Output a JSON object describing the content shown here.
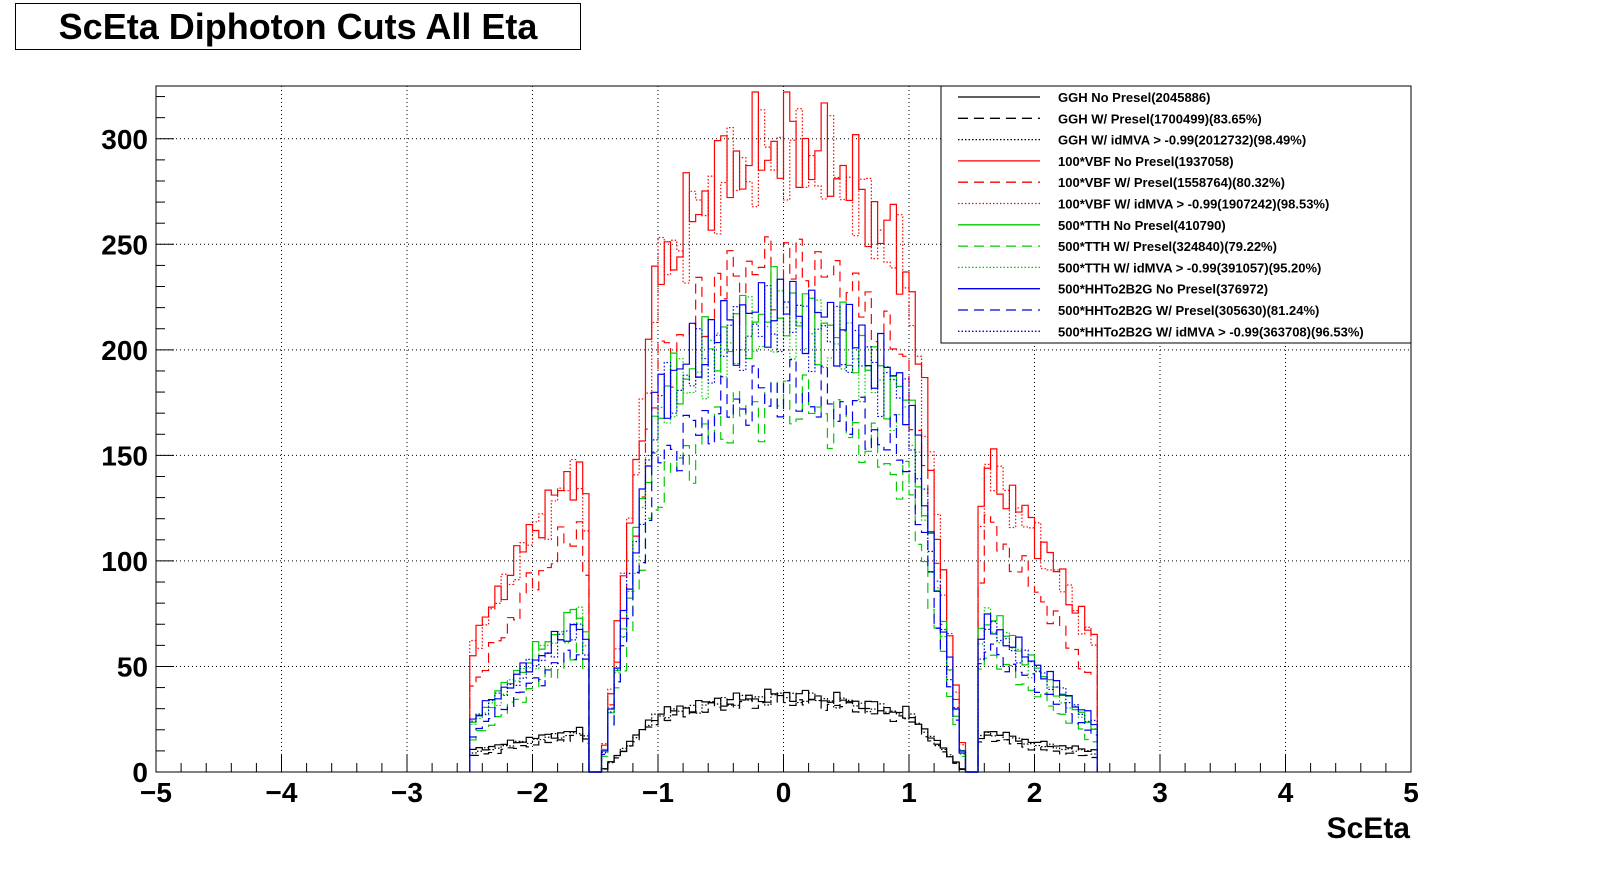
{
  "chart_data": {
    "type": "line",
    "title": "ScEta Diphoton Cuts All Eta",
    "xlabel": "ScEta",
    "ylabel": "",
    "xlim": [
      -5,
      5
    ],
    "ylim": [
      0,
      325
    ],
    "xticks": [
      -5,
      -4,
      -3,
      -2,
      -1,
      0,
      1,
      2,
      3,
      4,
      5
    ],
    "xtick_labels": [
      "−5",
      "−4",
      "−3",
      "−2",
      "−1",
      "0",
      "1",
      "2",
      "3",
      "4",
      "5"
    ],
    "yticks": [
      0,
      50,
      100,
      150,
      200,
      250,
      300
    ],
    "ytick_labels": [
      "0",
      "50",
      "100",
      "150",
      "200",
      "250",
      "300"
    ],
    "grid": true,
    "legend_placement": "top-right",
    "x_centers": [
      -2.5,
      -2.0,
      -1.6,
      -1.45,
      -1.0,
      -0.5,
      0.0,
      0.5,
      1.0,
      1.45,
      1.6,
      2.0,
      2.5
    ],
    "series": [
      {
        "name": "GGH No Presel(2045886)",
        "color": "#000000",
        "dash": "solid",
        "values": [
          10,
          16,
          20,
          0,
          28,
          34,
          37,
          34,
          28,
          0,
          20,
          14,
          10
        ]
      },
      {
        "name": "GGH W/ Presel(1700499)(83.65%)",
        "color": "#000000",
        "dash": "dashed",
        "values": [
          7,
          13,
          17,
          0,
          25,
          31,
          34,
          31,
          25,
          0,
          17,
          11,
          7
        ]
      },
      {
        "name": "GGH W/ idMVA > -0.99(2012732)(98.49%)",
        "color": "#000000",
        "dash": "dotted",
        "values": [
          9,
          15,
          19,
          0,
          27,
          33,
          36,
          33,
          27,
          0,
          19,
          13,
          9
        ]
      },
      {
        "name": "100*VBF No Presel(1937058)",
        "color": "#ff0000",
        "dash": "solid",
        "values": [
          58,
          115,
          148,
          0,
          238,
          285,
          300,
          285,
          238,
          0,
          148,
          115,
          60
        ]
      },
      {
        "name": "100*VBF W/ Presel(1558764)(80.32%)",
        "color": "#ff0000",
        "dash": "dashed",
        "values": [
          38,
          90,
          118,
          0,
          190,
          230,
          240,
          230,
          190,
          0,
          118,
          88,
          40
        ]
      },
      {
        "name": "100*VBF W/ idMVA > -0.99(1907242)(98.53%)",
        "color": "#ff0000",
        "dash": "dotted",
        "values": [
          56,
          112,
          145,
          0,
          233,
          280,
          295,
          280,
          233,
          0,
          145,
          112,
          58
        ]
      },
      {
        "name": "500*TTH No Presel(410790)",
        "color": "#00cc00",
        "dash": "solid",
        "values": [
          22,
          55,
          78,
          0,
          175,
          205,
          222,
          205,
          175,
          0,
          78,
          50,
          20
        ]
      },
      {
        "name": "500*TTH W/ Presel(324840)(79.22%)",
        "color": "#00cc00",
        "dash": "dashed",
        "values": [
          14,
          40,
          58,
          0,
          135,
          165,
          178,
          165,
          135,
          0,
          58,
          38,
          13
        ]
      },
      {
        "name": "500*TTH W/ idMVA > -0.99(391057)(95.20%)",
        "color": "#00cc00",
        "dash": "dotted",
        "values": [
          20,
          52,
          74,
          0,
          168,
          198,
          213,
          198,
          168,
          0,
          74,
          48,
          19
        ]
      },
      {
        "name": "500*HHTo2B2G No Presel(376972)",
        "color": "#0000ee",
        "dash": "solid",
        "values": [
          24,
          52,
          72,
          0,
          180,
          210,
          222,
          210,
          180,
          0,
          72,
          52,
          22
        ]
      },
      {
        "name": "500*HHTo2B2G W/ Presel(305630)(81.24%)",
        "color": "#0000ee",
        "dash": "dashed",
        "values": [
          17,
          42,
          60,
          0,
          148,
          172,
          182,
          172,
          148,
          0,
          60,
          42,
          16
        ]
      },
      {
        "name": "500*HHTo2B2G W/ idMVA > -0.99(363708)(96.53%)",
        "color": "#0000ee",
        "dash": "dotted",
        "values": [
          23,
          50,
          70,
          0,
          174,
          203,
          215,
          203,
          174,
          0,
          70,
          50,
          21
        ]
      }
    ]
  }
}
